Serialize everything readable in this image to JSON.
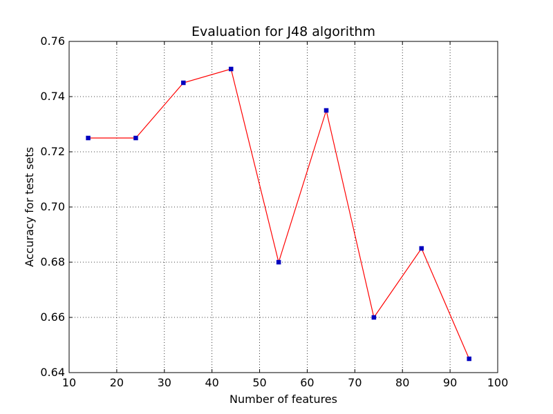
{
  "chart_data": {
    "type": "line",
    "title": "Evaluation for J48 algorithm",
    "xlabel": "Number of features",
    "ylabel": "Accuracy for test sets",
    "xlim": [
      10,
      100
    ],
    "ylim": [
      0.64,
      0.76
    ],
    "xticks": [
      10,
      20,
      30,
      40,
      50,
      60,
      70,
      80,
      90,
      100
    ],
    "yticks": [
      0.64,
      0.66,
      0.68,
      0.7,
      0.72,
      0.74,
      0.76
    ],
    "xtick_labels": [
      "10",
      "20",
      "30",
      "40",
      "50",
      "60",
      "70",
      "80",
      "90",
      "100"
    ],
    "ytick_labels": [
      "0.64",
      "0.66",
      "0.68",
      "0.70",
      "0.72",
      "0.74",
      "0.76"
    ],
    "grid": true,
    "series": [
      {
        "x": [
          14,
          24,
          34,
          44,
          54,
          64,
          74,
          84,
          94
        ],
        "y": [
          0.725,
          0.725,
          0.745,
          0.75,
          0.68,
          0.735,
          0.66,
          0.685,
          0.645
        ],
        "line_color": "#ff0000",
        "marker_color": "#0000bf",
        "marker": "square"
      }
    ]
  }
}
